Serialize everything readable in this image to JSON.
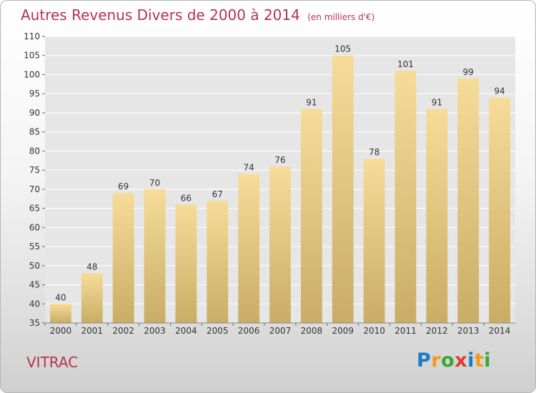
{
  "header": {
    "title": "Autres Revenus Divers de 2000 à 2014",
    "subtitle": "(en milliers d'€)"
  },
  "footer": {
    "town": "VITRAC",
    "logo_text": "Proxiti",
    "logo_letters": [
      "P",
      "r",
      "o",
      "x",
      "i",
      "t",
      "i"
    ],
    "logo_colors": [
      "#1f78c8",
      "#f29a1b",
      "#3aa635",
      "#e03a2f",
      "#1f78c8",
      "#f29a1b",
      "#3aa635"
    ]
  },
  "colors": {
    "title": "#b5334f",
    "bar_top": "#f6dc98",
    "bar_bottom": "#c9ad66",
    "grid": "#ffffff"
  },
  "chart_data": {
    "type": "bar",
    "title": "Autres Revenus Divers de 2000 à 2014",
    "subtitle": "(en milliers d'€)",
    "categories": [
      "2000",
      "2001",
      "2002",
      "2003",
      "2004",
      "2005",
      "2006",
      "2007",
      "2008",
      "2009",
      "2010",
      "2011",
      "2012",
      "2013",
      "2014"
    ],
    "values": [
      40,
      48,
      69,
      70,
      66,
      67,
      74,
      76,
      91,
      105,
      78,
      101,
      91,
      99,
      94
    ],
    "ylim": [
      35,
      110
    ],
    "yticks": [
      35,
      40,
      45,
      50,
      55,
      60,
      65,
      70,
      75,
      80,
      85,
      90,
      95,
      100,
      105,
      110
    ],
    "grid": true,
    "data_labels": true
  }
}
